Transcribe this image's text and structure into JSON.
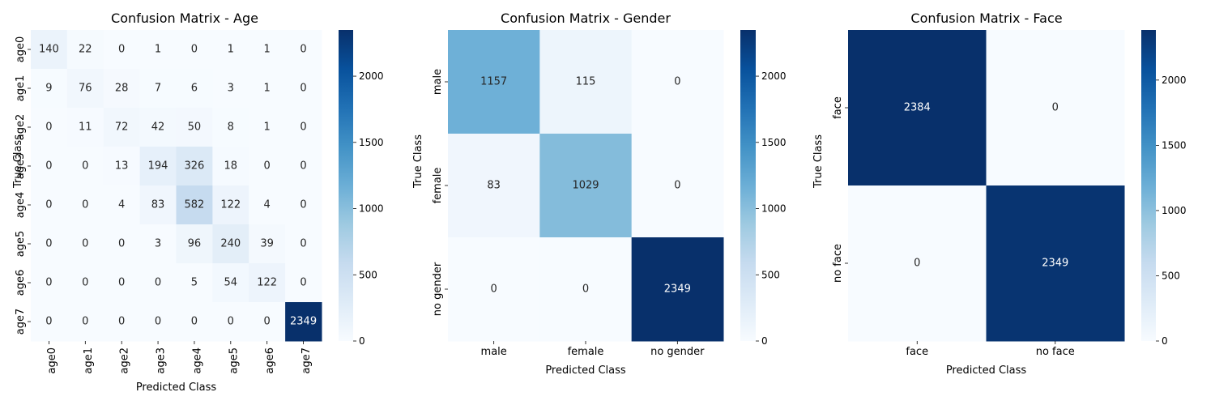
{
  "chart_data": [
    {
      "type": "heatmap",
      "title": "Confusion Matrix - Age",
      "xlabel": "Predicted Class",
      "ylabel": "True Class",
      "x_categories": [
        "age0",
        "age1",
        "age2",
        "age3",
        "age4",
        "age5",
        "age6",
        "age7"
      ],
      "y_categories": [
        "age0",
        "age1",
        "age2",
        "age3",
        "age4",
        "age5",
        "age6",
        "age7"
      ],
      "values": [
        [
          140,
          22,
          0,
          1,
          0,
          1,
          1,
          0
        ],
        [
          9,
          76,
          28,
          7,
          6,
          3,
          1,
          0
        ],
        [
          0,
          11,
          72,
          42,
          50,
          8,
          1,
          0
        ],
        [
          0,
          0,
          13,
          194,
          326,
          18,
          0,
          0
        ],
        [
          0,
          0,
          4,
          83,
          582,
          122,
          4,
          0
        ],
        [
          0,
          0,
          0,
          3,
          96,
          240,
          39,
          0
        ],
        [
          0,
          0,
          0,
          0,
          5,
          54,
          122,
          0
        ],
        [
          0,
          0,
          0,
          0,
          0,
          0,
          0,
          2349
        ]
      ],
      "colorbar": {
        "min": 0,
        "max": 2349,
        "ticks": [
          0,
          500,
          1000,
          1500,
          2000
        ]
      }
    },
    {
      "type": "heatmap",
      "title": "Confusion Matrix - Gender",
      "xlabel": "Predicted Class",
      "ylabel": "True Class",
      "x_categories": [
        "male",
        "female",
        "no gender"
      ],
      "y_categories": [
        "male",
        "female",
        "no gender"
      ],
      "values": [
        [
          1157,
          115,
          0
        ],
        [
          83,
          1029,
          0
        ],
        [
          0,
          0,
          2349
        ]
      ],
      "colorbar": {
        "min": 0,
        "max": 2349,
        "ticks": [
          0,
          500,
          1000,
          1500,
          2000
        ]
      }
    },
    {
      "type": "heatmap",
      "title": "Confusion Matrix - Face",
      "xlabel": "Predicted Class",
      "ylabel": "True Class",
      "x_categories": [
        "face",
        "no face"
      ],
      "y_categories": [
        "face",
        "no face"
      ],
      "values": [
        [
          2384,
          0
        ],
        [
          0,
          2349
        ]
      ],
      "colorbar": {
        "min": 0,
        "max": 2384,
        "ticks": [
          0,
          500,
          1000,
          1500,
          2000
        ]
      }
    }
  ],
  "colormap": [
    "#f7fbff",
    "#deebf7",
    "#c6dbef",
    "#9ecae1",
    "#6baed6",
    "#4292c6",
    "#2171b5",
    "#08519c",
    "#08306b"
  ]
}
